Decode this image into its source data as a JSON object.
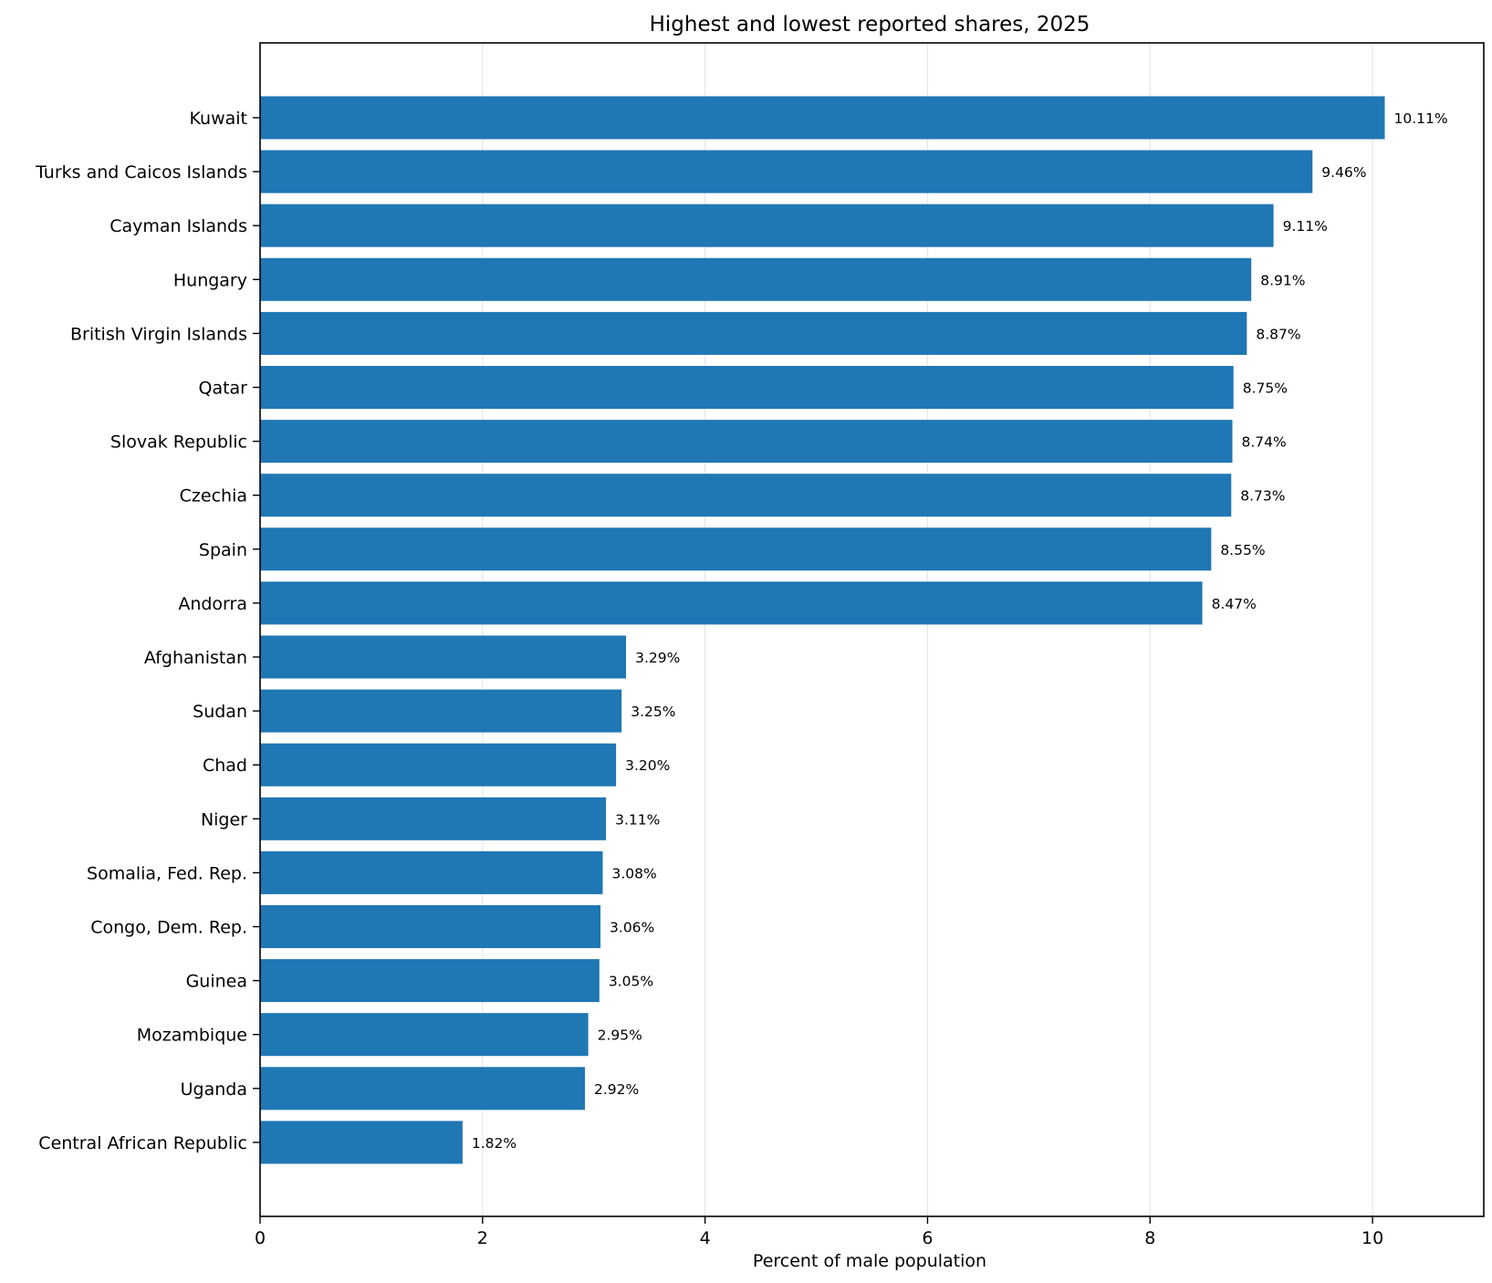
{
  "chart_data": {
    "type": "bar",
    "orientation": "horizontal",
    "title": "Highest and lowest reported shares, 2025",
    "xlabel": "Percent of male population",
    "ylabel": "",
    "xlim": [
      0,
      11
    ],
    "xticks": [
      0,
      2,
      4,
      6,
      8,
      10
    ],
    "grid": "vertical",
    "bar_color": "#1f77b4",
    "categories": [
      "Kuwait",
      "Turks and Caicos Islands",
      "Cayman Islands",
      "Hungary",
      "British Virgin Islands",
      "Qatar",
      "Slovak Republic",
      "Czechia",
      "Spain",
      "Andorra",
      "Afghanistan",
      "Sudan",
      "Chad",
      "Niger",
      "Somalia, Fed. Rep.",
      "Congo, Dem. Rep.",
      "Guinea",
      "Mozambique",
      "Uganda",
      "Central African Republic"
    ],
    "values": [
      10.11,
      9.46,
      9.11,
      8.91,
      8.87,
      8.75,
      8.74,
      8.73,
      8.55,
      8.47,
      3.29,
      3.25,
      3.2,
      3.11,
      3.08,
      3.06,
      3.05,
      2.95,
      2.92,
      1.82
    ],
    "data_labels": [
      "10.11%",
      "9.46%",
      "9.11%",
      "8.91%",
      "8.87%",
      "8.75%",
      "8.74%",
      "8.73%",
      "8.55%",
      "8.47%",
      "3.29%",
      "3.25%",
      "3.20%",
      "3.11%",
      "3.08%",
      "3.06%",
      "3.05%",
      "2.95%",
      "2.92%",
      "1.82%"
    ]
  }
}
